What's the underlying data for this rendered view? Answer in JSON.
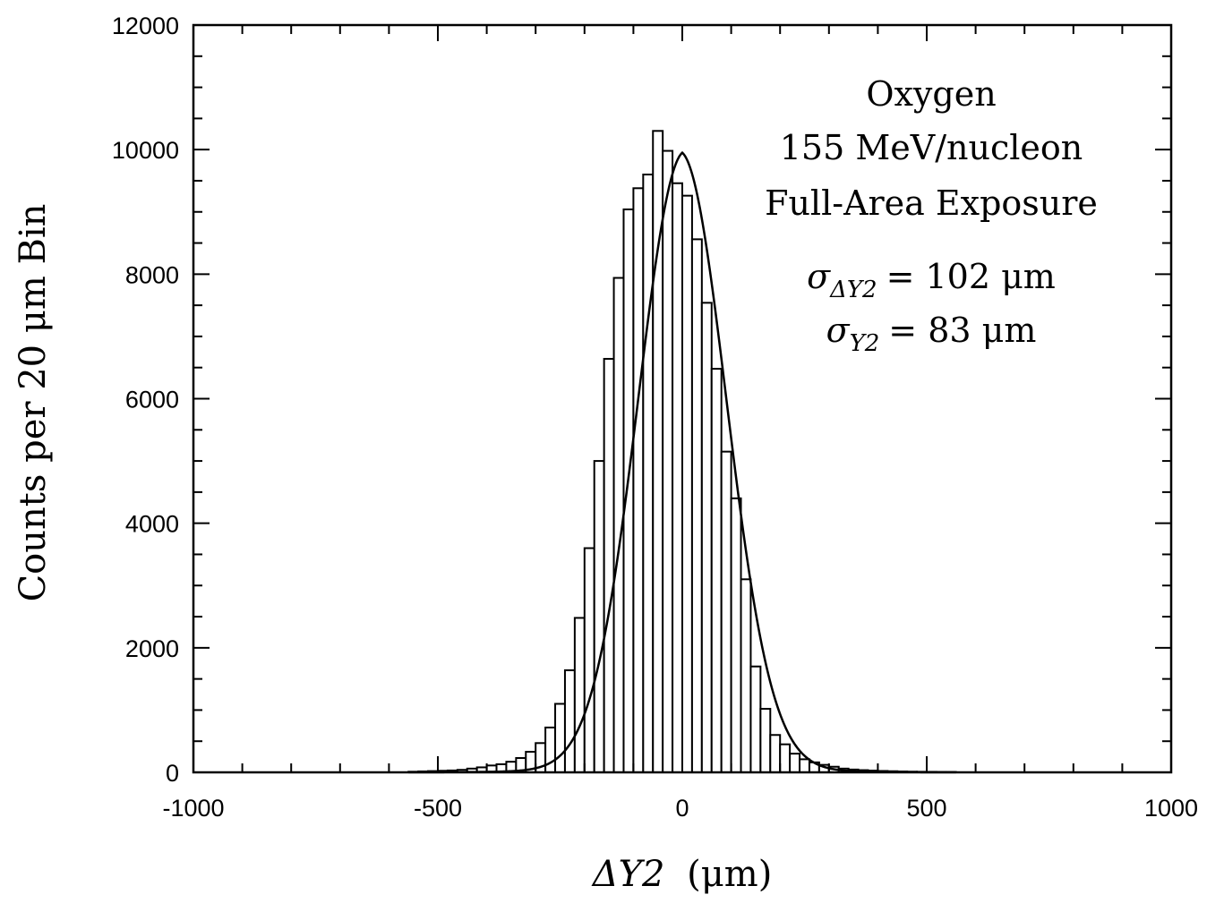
{
  "chart_data": {
    "type": "bar",
    "xlabel_prefix": "ΔY2",
    "xlabel_unit": "(μm)",
    "ylabel": "Counts per 20 μm Bin",
    "xlim": [
      -1000,
      1000
    ],
    "ylim": [
      0,
      12000
    ],
    "x_ticks": [
      "-1000",
      "-500",
      "0",
      "500",
      "1000"
    ],
    "y_ticks": [
      "0",
      "2000",
      "4000",
      "6000",
      "8000",
      "10000",
      "12000"
    ],
    "bin_width": 20,
    "bin_centers": [
      -550,
      -530,
      -510,
      -490,
      -470,
      -450,
      -430,
      -410,
      -390,
      -370,
      -350,
      -330,
      -310,
      -290,
      -270,
      -250,
      -230,
      -210,
      -190,
      -170,
      -150,
      -130,
      -110,
      -90,
      -70,
      -50,
      -30,
      -10,
      10,
      30,
      50,
      70,
      90,
      110,
      130,
      150,
      170,
      190,
      210,
      230,
      250,
      270,
      290,
      310,
      330,
      350,
      370,
      390,
      410,
      430,
      450,
      470,
      490,
      510,
      530,
      550
    ],
    "counts": [
      10,
      15,
      20,
      25,
      30,
      40,
      60,
      80,
      110,
      130,
      170,
      230,
      330,
      470,
      720,
      1100,
      1640,
      2480,
      3600,
      5000,
      6640,
      7940,
      9040,
      9380,
      9600,
      10300,
      9980,
      9460,
      9260,
      8560,
      7540,
      6480,
      5150,
      4400,
      3100,
      1700,
      1020,
      600,
      450,
      300,
      210,
      160,
      120,
      90,
      60,
      45,
      35,
      28,
      22,
      18,
      14,
      11,
      9,
      8,
      6,
      5
    ],
    "fit": {
      "type": "gaussian-like",
      "amplitude": 9950,
      "center": 0,
      "sigma": 102
    },
    "annotations": {
      "line1": "Oxygen",
      "line2": "155 MeV/nucleon",
      "line3": "Full-Area Exposure",
      "sigma1_sub": "ΔY2",
      "sigma1_value": "= 102 μm",
      "sigma2_sub": "Y2",
      "sigma2_value": "= 83 μm",
      "sigma_symbol": "σ"
    },
    "grid": false,
    "colors": {
      "bars": "#ffffff",
      "stroke": "#000000"
    }
  }
}
